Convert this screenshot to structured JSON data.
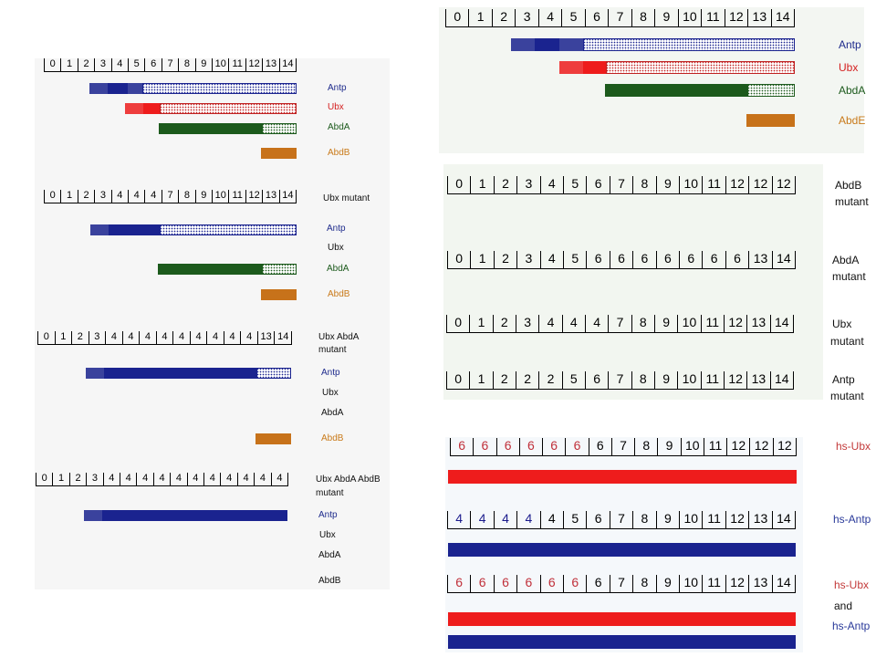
{
  "colors": {
    "navy": "#1a238f",
    "red": "#ee1c1c",
    "green": "#1c5a1c",
    "orange": "#c7721a",
    "dotted_navy_bg": "#ffffff",
    "dotted_navy_fg": "#1a238f",
    "dotted_red_bg": "#ffffff",
    "dotted_red_fg": "#c02020",
    "dotted_green_bg": "#ffffff",
    "dotted_green_fg": "#1c5a1c"
  },
  "panels": [
    {
      "id": "left-wildtype",
      "ruler": [
        "0",
        "1",
        "2",
        "3",
        "4",
        "5",
        "6",
        "7",
        "8",
        "9",
        "10",
        "11",
        "12",
        "13",
        "14"
      ],
      "side_label": "",
      "bars": [
        {
          "gene": "Antp",
          "segments": [
            [
              3,
              4,
              "hatch-navy"
            ],
            [
              4,
              5,
              "solid-navy"
            ],
            [
              5,
              6,
              "hatch-navy"
            ],
            [
              6,
              15,
              "dot-navy"
            ]
          ]
        },
        {
          "gene": "Ubx",
          "segments": [
            [
              5,
              6,
              "hatch-red"
            ],
            [
              6,
              7,
              "solid-red"
            ],
            [
              7,
              15,
              "dot-red"
            ]
          ]
        },
        {
          "gene": "AbdA",
          "segments": [
            [
              7,
              13,
              "solid-green"
            ],
            [
              13,
              15,
              "dot-green"
            ]
          ]
        },
        {
          "gene": "AbdB",
          "segments": [
            [
              13,
              15,
              "solid-orange"
            ]
          ]
        }
      ],
      "labels": [
        "Antp",
        "Ubx",
        "AbdA",
        "AbdB"
      ]
    },
    {
      "id": "left-ubx-mutant",
      "ruler": [
        "0",
        "1",
        "2",
        "3",
        "4",
        "4",
        "4",
        "7",
        "8",
        "9",
        "10",
        "11",
        "12",
        "13",
        "14"
      ],
      "side_label": "Ubx mutant",
      "labels": [
        "Antp",
        "Ubx",
        "AbdA",
        "AbdB"
      ]
    },
    {
      "id": "left-ubx-abda-mutant",
      "ruler": [
        "0",
        "1",
        "2",
        "3",
        "4",
        "4",
        "4",
        "4",
        "4",
        "4",
        "4",
        "4",
        "4",
        "13",
        "14"
      ],
      "side_label_lines": [
        "Ubx AbdA",
        "mutant"
      ],
      "labels": [
        "Antp",
        "Ubx",
        "AbdA",
        "AbdB"
      ]
    },
    {
      "id": "left-ubx-abda-abdb-mutant",
      "ruler": [
        "0",
        "1",
        "2",
        "3",
        "4",
        "4",
        "4",
        "4",
        "4",
        "4",
        "4",
        "4",
        "4",
        "4",
        "4"
      ],
      "side_label_lines": [
        "Ubx AbdA AbdB",
        "mutant"
      ],
      "labels": [
        "Antp",
        "Ubx",
        "AbdA",
        "AbdB"
      ]
    },
    {
      "id": "right-wildtype",
      "ruler": [
        "0",
        "1",
        "2",
        "3",
        "4",
        "5",
        "6",
        "7",
        "8",
        "9",
        "10",
        "11",
        "12",
        "13",
        "14"
      ],
      "labels": [
        "Antp",
        "Ubx",
        "AbdA",
        "AbdE"
      ]
    },
    {
      "id": "right-abdb-mutant",
      "ruler": [
        "0",
        "1",
        "2",
        "3",
        "4",
        "5",
        "6",
        "7",
        "8",
        "9",
        "10",
        "11",
        "12",
        "12",
        "12"
      ],
      "side_label_lines": [
        "AbdB",
        "mutant"
      ]
    },
    {
      "id": "right-abda-mutant",
      "ruler": [
        "0",
        "1",
        "2",
        "3",
        "4",
        "5",
        "6",
        "6",
        "6",
        "6",
        "6",
        "6",
        "6",
        "13",
        "14"
      ],
      "side_label_lines": [
        "AbdA",
        "mutant"
      ]
    },
    {
      "id": "right-ubx-mutant",
      "ruler": [
        "0",
        "1",
        "2",
        "3",
        "4",
        "4",
        "4",
        "7",
        "8",
        "9",
        "10",
        "11",
        "12",
        "13",
        "14"
      ],
      "side_label_lines": [
        "Ubx",
        "mutant"
      ]
    },
    {
      "id": "right-antp-mutant",
      "ruler": [
        "0",
        "1",
        "2",
        "2",
        "2",
        "5",
        "6",
        "7",
        "8",
        "9",
        "10",
        "11",
        "12",
        "13",
        "14"
      ],
      "side_label_lines": [
        "Antp",
        "mutant"
      ]
    },
    {
      "id": "right-hs-ubx",
      "ruler": [
        "6",
        "6",
        "6",
        "6",
        "6",
        "6",
        "6",
        "7",
        "8",
        "9",
        "10",
        "11",
        "12",
        "12",
        "12"
      ],
      "ruler_red_count": 6,
      "side_label": "hs-Ubx"
    },
    {
      "id": "right-hs-antp",
      "ruler": [
        "4",
        "4",
        "4",
        "4",
        "4",
        "5",
        "6",
        "7",
        "8",
        "9",
        "10",
        "11",
        "12",
        "13",
        "14"
      ],
      "ruler_navy_count": 4,
      "side_label": "hs-Antp"
    },
    {
      "id": "right-hs-ubx-antp",
      "ruler": [
        "6",
        "6",
        "6",
        "6",
        "6",
        "6",
        "6",
        "7",
        "8",
        "9",
        "10",
        "11",
        "12",
        "13",
        "14"
      ],
      "ruler_red_count": 6,
      "side_label_lines": [
        "hs-Ubx",
        "and",
        "hs-Antp"
      ]
    }
  ]
}
